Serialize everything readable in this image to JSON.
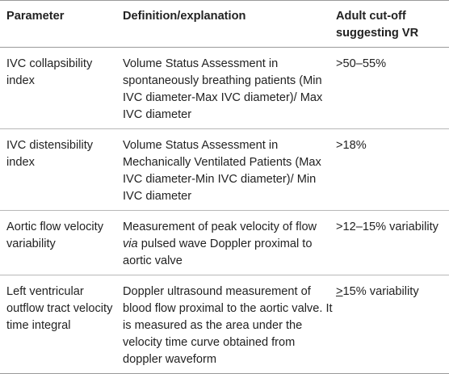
{
  "headers": {
    "parameter": "Parameter",
    "definition": "Definition/explanation",
    "cutoff": "Adult cut-off suggesting VR"
  },
  "rows": [
    {
      "parameter": "IVC collapsibility index",
      "definition": "Volume Status Assessment in spontaneously breathing patients (Min IVC diameter-Max IVC diameter)/ Max IVC diameter",
      "cutoff": ">50–55%"
    },
    {
      "parameter": "IVC distensibility index",
      "definition": "Volume Status Assessment in Mechanically Ventilated Patients (Max IVC diameter-Min IVC diameter)/ Min IVC diameter",
      "cutoff": ">18%"
    },
    {
      "parameter": "Aortic flow velocity variability",
      "definition_pre": "Measurement of peak velocity of flow",
      "definition_italic": "via",
      "definition_post": "pulsed wave Doppler proximal to aortic valve",
      "cutoff": ">12–15% variability"
    },
    {
      "parameter": "Left ventricular outflow tract velocity time integral",
      "definition": "Doppler ultrasound measurement of blood flow proximal to the aortic valve. It is measured as the area under the velocity time curve obtained from doppler waveform",
      "cutoff_symbol": ">",
      "cutoff_rest": "15% variability"
    }
  ]
}
